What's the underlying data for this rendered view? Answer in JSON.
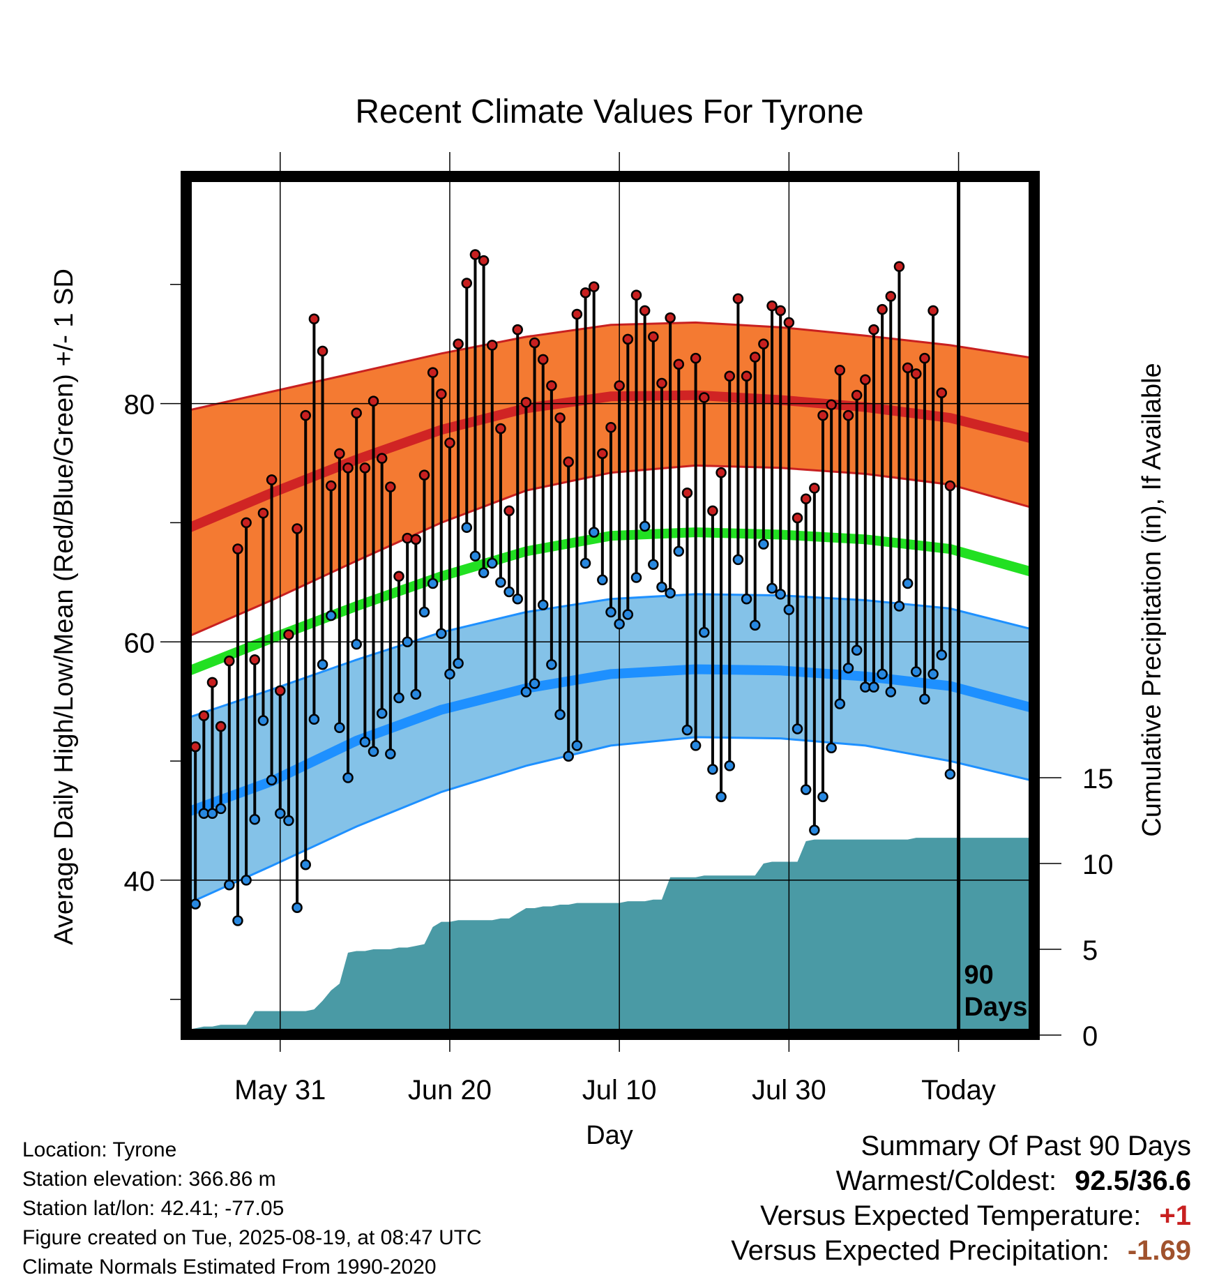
{
  "title": "Recent Climate Values For Tyrone",
  "colors": {
    "high_band": "#f47a32",
    "high_mean": "#d02424",
    "low_band": "#84c2e8",
    "low_mean": "#1e90ff",
    "avg_mean": "#22e022",
    "precip": "#4a9aa5",
    "high_dot": "#c82020",
    "low_dot": "#2888e0"
  },
  "chart_data": {
    "type": "line",
    "title": "Recent Climate Values For Tyrone",
    "xlabel": "Day",
    "ylabel": "Average Daily High/Low/Mean (Red/Blue/Green) +/- 1 SD",
    "y2label": "Cumulative Precipitation (in), If Available",
    "x_tick_labels": [
      "May 31",
      "Jun 20",
      "Jul 10",
      "Jul 30",
      "Today"
    ],
    "x_tick_days": [
      11,
      31,
      51,
      71,
      91
    ],
    "x_range_days": [
      0,
      100
    ],
    "ylim": [
      27,
      99
    ],
    "y_ticks": [
      40,
      60,
      80
    ],
    "y2lim": [
      0,
      50
    ],
    "y2_ticks": [
      0,
      5,
      10,
      15
    ],
    "grid": true,
    "today_marker": "90 Days",
    "normals": {
      "day": [
        0,
        10,
        20,
        30,
        40,
        50,
        60,
        70,
        80,
        90,
        100
      ],
      "high_mean": [
        69.5,
        72.5,
        75.3,
        77.8,
        79.6,
        80.6,
        80.7,
        80.3,
        79.7,
        78.8,
        77.0
      ],
      "high_upper": [
        79.4,
        81.0,
        82.6,
        84.2,
        85.6,
        86.6,
        86.8,
        86.4,
        85.7,
        84.9,
        83.8
      ],
      "high_lower": [
        60.4,
        63.5,
        66.8,
        70.0,
        72.7,
        74.2,
        74.8,
        74.6,
        74.1,
        73.2,
        71.2
      ],
      "avg_mean": [
        57.5,
        60.3,
        63.0,
        65.5,
        67.6,
        68.9,
        69.2,
        69.0,
        68.6,
        67.8,
        65.8
      ],
      "low_mean": [
        45.7,
        48.3,
        51.7,
        54.3,
        56.1,
        57.3,
        57.7,
        57.6,
        57.1,
        56.3,
        54.4
      ],
      "low_upper": [
        53.6,
        56.0,
        58.5,
        60.8,
        62.5,
        63.6,
        64.0,
        63.9,
        63.5,
        62.8,
        61.0
      ],
      "low_lower": [
        38.0,
        41.2,
        44.5,
        47.4,
        49.6,
        51.3,
        52.0,
        51.9,
        51.3,
        50.0,
        48.3
      ]
    },
    "daily": {
      "day": [
        1,
        2,
        3,
        4,
        5,
        6,
        7,
        8,
        9,
        10,
        11,
        12,
        13,
        14,
        15,
        16,
        17,
        18,
        19,
        20,
        21,
        22,
        23,
        24,
        25,
        26,
        27,
        28,
        29,
        30,
        31,
        32,
        33,
        34,
        35,
        36,
        37,
        38,
        39,
        40,
        41,
        42,
        43,
        44,
        45,
        46,
        47,
        48,
        49,
        50,
        51,
        52,
        53,
        54,
        55,
        56,
        57,
        58,
        59,
        60,
        61,
        62,
        63,
        64,
        65,
        66,
        67,
        68,
        69,
        70,
        71,
        72,
        73,
        74,
        75,
        76,
        77,
        78,
        79,
        80,
        81,
        82,
        83,
        84,
        85,
        86,
        87,
        88,
        89,
        90
      ],
      "high": [
        51.2,
        53.8,
        56.6,
        52.9,
        58.4,
        67.8,
        70.0,
        58.5,
        70.8,
        73.6,
        55.9,
        60.6,
        69.5,
        79.0,
        87.1,
        84.4,
        73.1,
        75.8,
        74.6,
        79.2,
        74.6,
        80.2,
        75.4,
        73.0,
        65.5,
        68.7,
        68.6,
        74.0,
        82.6,
        80.8,
        76.7,
        85.0,
        90.1,
        92.5,
        92.0,
        84.9,
        77.9,
        71.0,
        86.2,
        80.1,
        85.1,
        83.7,
        81.5,
        78.8,
        75.1,
        87.5,
        89.3,
        89.8,
        75.8,
        78.0,
        81.5,
        85.4,
        89.1,
        87.8,
        85.6,
        81.7,
        87.2,
        83.3,
        72.5,
        83.8,
        80.5,
        71.0,
        74.2,
        82.3,
        88.8,
        82.3,
        83.9,
        85.0,
        88.2,
        87.8,
        86.8,
        70.4,
        72.0,
        72.9,
        79.0,
        79.9,
        82.8,
        79.0,
        80.7,
        82.0,
        86.2,
        87.9,
        89.0,
        91.5,
        83.0,
        82.5,
        83.8,
        87.8,
        80.9,
        73.1
      ],
      "low": [
        38.0,
        45.6,
        45.6,
        46.0,
        39.6,
        36.6,
        40.0,
        45.1,
        53.4,
        48.4,
        45.6,
        45.0,
        37.7,
        41.3,
        53.5,
        58.1,
        62.2,
        52.8,
        48.6,
        59.8,
        51.6,
        50.8,
        54.0,
        50.6,
        55.3,
        60.0,
        55.6,
        62.5,
        64.9,
        60.7,
        57.3,
        58.2,
        69.6,
        67.2,
        65.8,
        66.6,
        65.0,
        64.2,
        63.6,
        55.8,
        56.5,
        63.1,
        58.1,
        53.9,
        50.4,
        51.3,
        66.6,
        69.2,
        65.2,
        62.5,
        61.5,
        62.3,
        65.4,
        69.7,
        66.5,
        64.6,
        64.1,
        67.6,
        52.6,
        51.3,
        60.8,
        49.3,
        47.0,
        49.6,
        66.9,
        63.6,
        61.4,
        68.2,
        64.5,
        64.0,
        62.7,
        52.7,
        47.6,
        44.2,
        47.0,
        51.1,
        54.8,
        57.8,
        59.3,
        56.2,
        56.2,
        57.3,
        55.8,
        63.0,
        64.9,
        57.5,
        55.2,
        57.3,
        58.9,
        48.9
      ]
    },
    "cumulative_precip": {
      "day": [
        0,
        1,
        2,
        3,
        4,
        5,
        6,
        7,
        8,
        9,
        10,
        11,
        12,
        13,
        14,
        15,
        16,
        17,
        18,
        19,
        20,
        21,
        22,
        23,
        24,
        25,
        26,
        27,
        28,
        29,
        30,
        31,
        32,
        33,
        34,
        35,
        36,
        37,
        38,
        39,
        40,
        41,
        42,
        43,
        44,
        45,
        46,
        47,
        48,
        49,
        50,
        51,
        52,
        53,
        54,
        55,
        56,
        57,
        58,
        59,
        60,
        61,
        62,
        63,
        64,
        65,
        66,
        67,
        68,
        69,
        70,
        71,
        72,
        73,
        74,
        75,
        76,
        77,
        78,
        79,
        80,
        81,
        82,
        83,
        84,
        85,
        86,
        87,
        88,
        89,
        90,
        91,
        92,
        93,
        94,
        95,
        96,
        97,
        98,
        99,
        100
      ],
      "inches": [
        0.3,
        0.4,
        0.5,
        0.5,
        0.6,
        0.6,
        0.6,
        0.6,
        1.4,
        1.4,
        1.4,
        1.4,
        1.4,
        1.4,
        1.4,
        1.5,
        2.0,
        2.6,
        3.0,
        4.8,
        4.9,
        4.9,
        5.0,
        5.0,
        5.0,
        5.1,
        5.1,
        5.2,
        5.3,
        6.3,
        6.6,
        6.6,
        6.7,
        6.7,
        6.7,
        6.7,
        6.7,
        6.8,
        6.8,
        7.1,
        7.4,
        7.4,
        7.5,
        7.5,
        7.6,
        7.6,
        7.7,
        7.7,
        7.7,
        7.7,
        7.7,
        7.7,
        7.8,
        7.8,
        7.8,
        7.9,
        7.9,
        9.2,
        9.2,
        9.2,
        9.2,
        9.3,
        9.3,
        9.3,
        9.3,
        9.3,
        9.3,
        9.3,
        10.0,
        10.1,
        10.1,
        10.1,
        10.1,
        11.3,
        11.4,
        11.4,
        11.4,
        11.4,
        11.4,
        11.4,
        11.4,
        11.4,
        11.4,
        11.4,
        11.4,
        11.4,
        11.5,
        11.5,
        11.5,
        11.5,
        11.5,
        11.5,
        11.5,
        11.5,
        11.5,
        11.5,
        11.5,
        11.5,
        11.5,
        11.5,
        11.5
      ]
    }
  },
  "info": {
    "location": "Location: Tyrone",
    "elevation": "Station elevation: 366.86 m",
    "latlon": "Station lat/lon: 42.41; -77.05",
    "created": "Figure created on Tue, 2025-08-19, at 08:47 UTC",
    "normals": "Climate Normals Estimated From 1990-2020"
  },
  "summary": {
    "heading": "Summary Of Past 90 Days",
    "extremes_label": "Warmest/Coldest:",
    "extremes_value": "92.5/36.6",
    "temp_label": "Versus Expected Temperature:",
    "temp_value": "+1",
    "temp_color": "#c82020",
    "precip_label": "Versus Expected Precipitation:",
    "precip_value": "-1.69",
    "precip_color": "#a0522d"
  }
}
